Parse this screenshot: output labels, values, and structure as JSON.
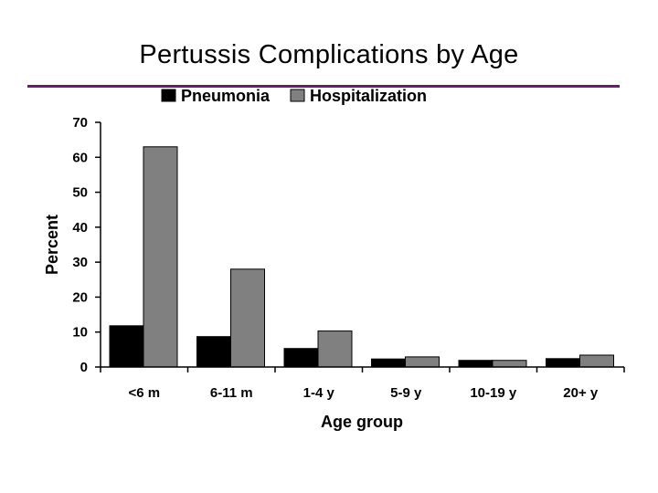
{
  "chart_data": {
    "type": "bar",
    "title": "Pertussis Complications by Age",
    "xlabel": "Age group",
    "ylabel": "Percent",
    "categories": [
      "<6 m",
      "6-11 m",
      "1-4 y",
      "5-9 y",
      "10-19 y",
      "20+ y"
    ],
    "series": [
      {
        "name": "Pneumonia",
        "values": [
          11.8,
          8.7,
          5.3,
          2.3,
          1.9,
          2.4
        ],
        "color": "#000000"
      },
      {
        "name": "Hospitalization",
        "values": [
          63,
          28,
          10.3,
          2.9,
          1.9,
          3.4
        ],
        "color": "#808080"
      }
    ],
    "ylim": [
      0,
      70
    ],
    "yticks": [
      0,
      10,
      20,
      30,
      40,
      50,
      60,
      70
    ],
    "legend": "top",
    "grid": false
  }
}
